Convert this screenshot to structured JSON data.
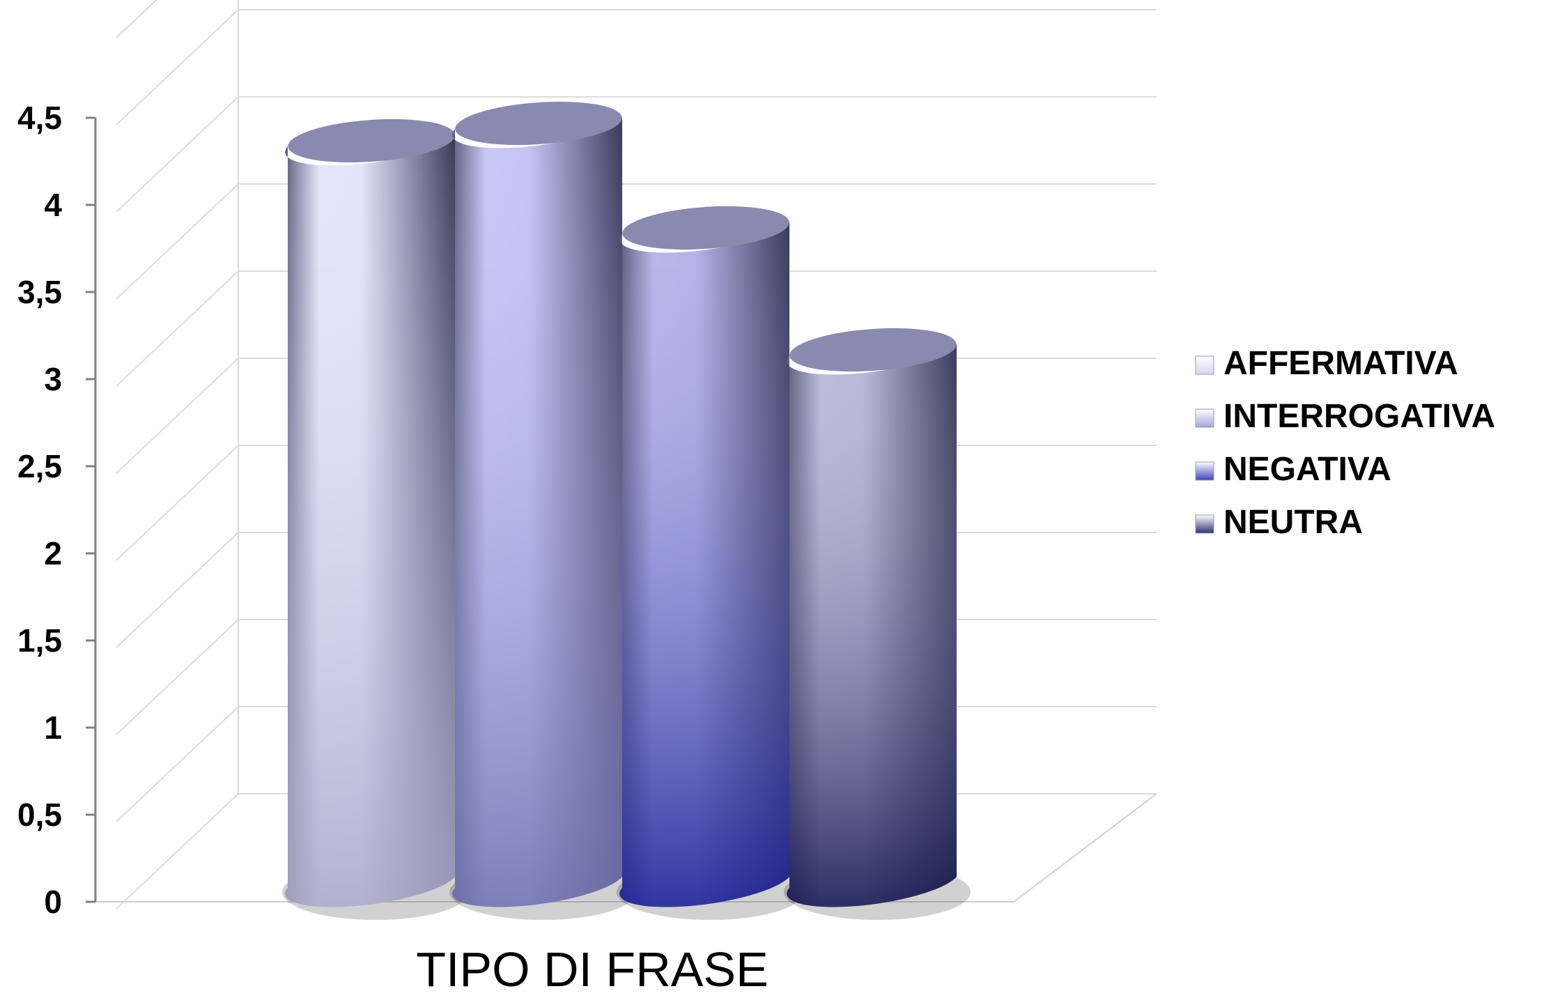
{
  "chart_data": {
    "type": "bar",
    "style": "3d-cylinder",
    "xlabel": "TIPO DI FRASE",
    "ylabel": "",
    "ylim": [
      0,
      4.5
    ],
    "yticks": [
      "0",
      "0,5",
      "1",
      "1,5",
      "2",
      "2,5",
      "3",
      "3,5",
      "4",
      "4,5"
    ],
    "grid": true,
    "legend_position": "right",
    "series": [
      {
        "name": "AFFERMATIVA",
        "value": 4.4,
        "color_light": "#e3e4fb",
        "color_dark": "#a9a9c7",
        "legend_color": "#d6d7f3"
      },
      {
        "name": "INTERROGATIVA",
        "value": 4.5,
        "color_light": "#c5c6f6",
        "color_dark": "#7172b0",
        "legend_color": "#a4a5de"
      },
      {
        "name": "NEGATIVA",
        "value": 3.9,
        "color_light": "#b4b4e8",
        "color_dark": "#1c1f96",
        "legend_color": "#3f42b8"
      },
      {
        "name": "NEUTRA",
        "value": 3.2,
        "color_light": "#b9b9d9",
        "color_dark": "#14164f",
        "legend_color": "#2d2f76"
      }
    ]
  }
}
